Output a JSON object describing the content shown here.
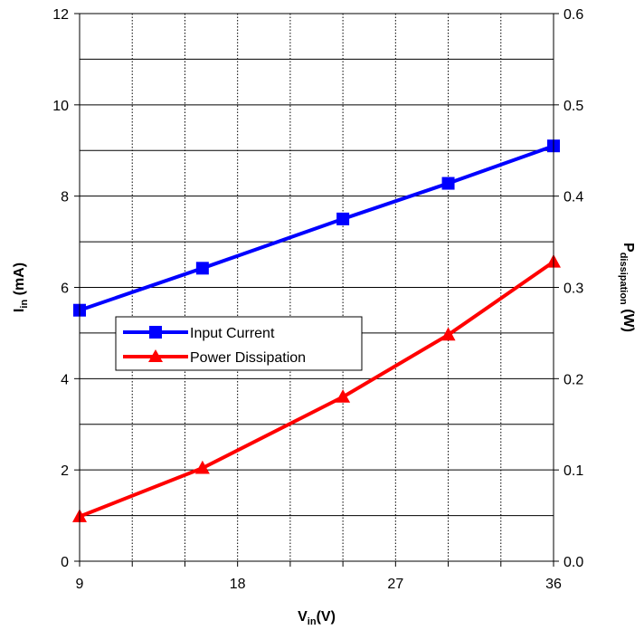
{
  "chart_data": {
    "type": "line",
    "x": [
      9,
      16,
      24,
      30,
      36
    ],
    "x_ticks": [
      "9",
      "18",
      "27",
      "36"
    ],
    "xlim": [
      9,
      36
    ],
    "x_minor_step": 3,
    "xlabel": {
      "main": "V",
      "sub": "in",
      "suffix": "(V)"
    },
    "y_left": {
      "label": {
        "main": "I",
        "sub": "in",
        "suffix": " (mA)"
      },
      "lim": [
        0,
        12
      ],
      "ticks": [
        "0",
        "2",
        "4",
        "6",
        "8",
        "10",
        "12"
      ],
      "minor_step": 1
    },
    "y_right": {
      "label": {
        "main": "P",
        "sub": "dissipation",
        "suffix": " (W)"
      },
      "lim": [
        0,
        0.6
      ],
      "ticks": [
        "0.0",
        "0.1",
        "0.2",
        "0.3",
        "0.4",
        "0.5",
        "0.6"
      ]
    },
    "grid": true,
    "legend": "left-middle",
    "series": [
      {
        "name": "Input Current",
        "axis": "left",
        "color": "#0000FF",
        "marker": "square",
        "values": [
          5.5,
          6.42,
          7.5,
          8.28,
          9.1
        ]
      },
      {
        "name": "Power Dissipation",
        "axis": "right",
        "color": "#FF0000",
        "marker": "triangle",
        "values": [
          0.049,
          0.102,
          0.18,
          0.248,
          0.328
        ]
      }
    ]
  }
}
